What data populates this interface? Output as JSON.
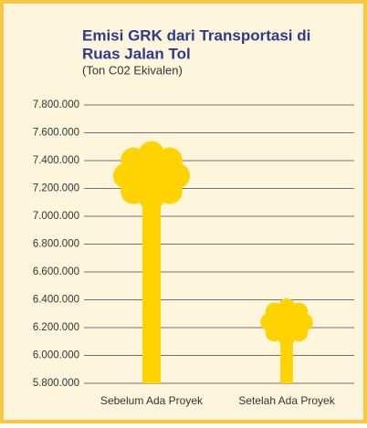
{
  "chart_data": {
    "type": "bar",
    "title_lines": [
      "Emisi GRK dari Transportasi di",
      "Ruas Jalan Tol"
    ],
    "subtitle": "(Ton C02 Ekivalen)",
    "categories": [
      "Sebelum Ada Proyek",
      "Setelah Ada Proyek"
    ],
    "values": [
      7540000,
      6410000
    ],
    "color": "#ffd200",
    "ylim": [
      5800000,
      7800000
    ],
    "yticks": [
      {
        "value": 5800000,
        "label": "5.800.000"
      },
      {
        "value": 6000000,
        "label": "6.000.000"
      },
      {
        "value": 6200000,
        "label": "6.200.000"
      },
      {
        "value": 6400000,
        "label": "6.400.000"
      },
      {
        "value": 6600000,
        "label": "6.600.000"
      },
      {
        "value": 6800000,
        "label": "6.800.000"
      },
      {
        "value": 7000000,
        "label": "7.000.000"
      },
      {
        "value": 7200000,
        "label": "7.200.000"
      },
      {
        "value": 7400000,
        "label": "7.400.000"
      },
      {
        "value": 7600000,
        "label": "7.600.000"
      },
      {
        "value": 7800000,
        "label": "7.800.000"
      }
    ],
    "grid": true
  }
}
